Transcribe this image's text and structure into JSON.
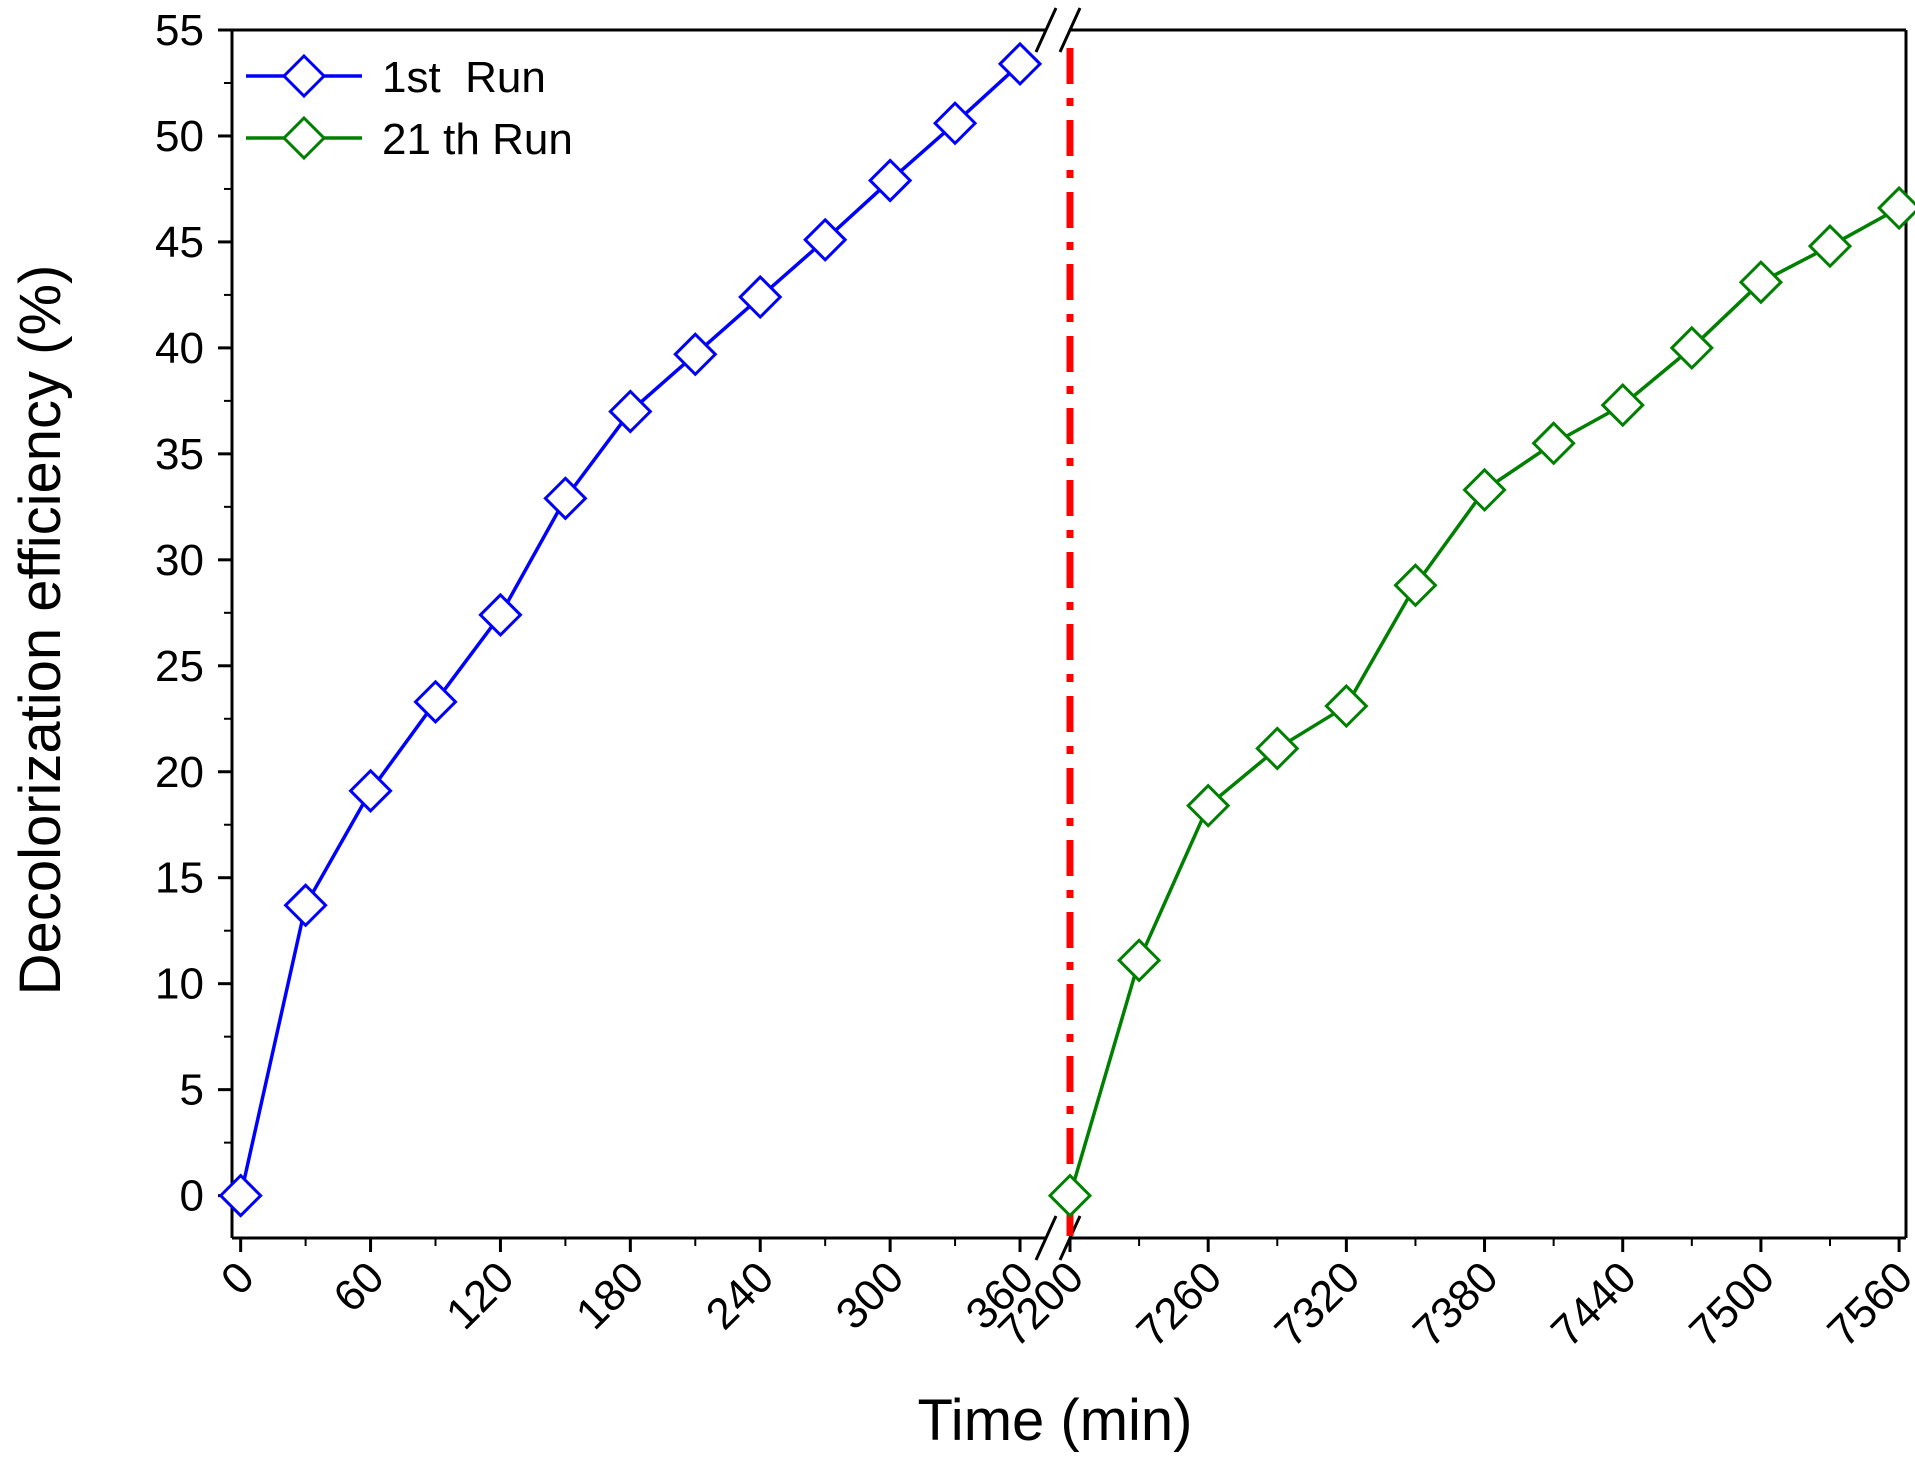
{
  "chart_data": {
    "type": "line",
    "xlabel": "Time (min)",
    "ylabel": "Decolorization efficiency (%)",
    "ylim": [
      -2,
      55
    ],
    "y_ticks": [
      "0",
      "5",
      "10",
      "15",
      "20",
      "25",
      "30",
      "35",
      "40",
      "45",
      "50",
      "55"
    ],
    "x_segments": [
      {
        "xlim": [
          -4,
          372
        ],
        "ticks": [
          "0",
          "60",
          "120",
          "180",
          "240",
          "300",
          "360"
        ]
      },
      {
        "xlim": [
          7200,
          7563
        ],
        "ticks": [
          "7200",
          "7260",
          "7320",
          "7380",
          "7440",
          "7500",
          "7560"
        ]
      }
    ],
    "series": [
      {
        "name": "1st  Run",
        "color": "#0000ff",
        "marker": "diamond-open",
        "segment": 0,
        "x": [
          0,
          30,
          60,
          90,
          120,
          150,
          180,
          210,
          240,
          270,
          300,
          330,
          360
        ],
        "y": [
          0,
          13.7,
          19.1,
          23.3,
          27.4,
          32.9,
          37.0,
          39.7,
          42.4,
          45.1,
          47.9,
          50.6,
          53.4
        ]
      },
      {
        "name": "21 th Run",
        "color": "#008000",
        "marker": "diamond-open",
        "segment": 1,
        "x": [
          7200,
          7230,
          7260,
          7290,
          7320,
          7350,
          7380,
          7410,
          7440,
          7470,
          7500,
          7530,
          7560
        ],
        "y": [
          0,
          11.1,
          18.4,
          21.1,
          23.1,
          28.8,
          33.3,
          35.5,
          37.3,
          40.0,
          43.1,
          44.8,
          46.6
        ]
      }
    ],
    "break_line": {
      "color": "#ff0000",
      "style": "dash-dot"
    },
    "legend": "top-left"
  }
}
